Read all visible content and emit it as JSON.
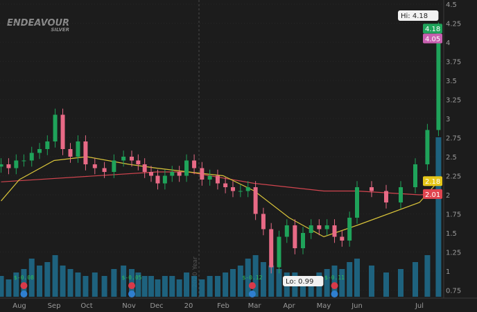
{
  "logo": {
    "name": "ENDEAVOUR",
    "sub": "SILVER"
  },
  "chart_data": {
    "type": "candlestick",
    "y_ticks": [
      4.5,
      4.25,
      4,
      3.75,
      3.5,
      3.25,
      3,
      2.75,
      2.5,
      2.25,
      2,
      1.75,
      1.5,
      1.25,
      1,
      0.75
    ],
    "ylim": [
      0.6,
      4.5
    ],
    "x_ticks": [
      "Aug",
      "Sep",
      "Oct",
      "Nov",
      "Dec",
      "20",
      "Feb",
      "Mar",
      "Apr",
      "May",
      "Jun",
      "Jul"
    ],
    "year_marker": "2020 Year",
    "dates": [
      "2019-07-15",
      "2019-07-22",
      "2019-07-29",
      "2019-08-05",
      "2019-08-12",
      "2019-08-19",
      "2019-08-26",
      "2019-09-02",
      "2019-09-09",
      "2019-09-16",
      "2019-09-23",
      "2019-09-30",
      "2019-10-07",
      "2019-10-14",
      "2019-10-21",
      "2019-10-28",
      "2019-11-04",
      "2019-11-11",
      "2019-11-18",
      "2019-11-25",
      "2019-12-02",
      "2019-12-09",
      "2019-12-16",
      "2019-12-23",
      "2019-12-30",
      "2020-01-06",
      "2020-01-13",
      "2020-01-20",
      "2020-01-27",
      "2020-02-03",
      "2020-02-10",
      "2020-02-17",
      "2020-02-24",
      "2020-03-02",
      "2020-03-09",
      "2020-03-16",
      "2020-03-23",
      "2020-03-30",
      "2020-04-06",
      "2020-04-13",
      "2020-04-20",
      "2020-04-27",
      "2020-05-04",
      "2020-05-11",
      "2020-05-18",
      "2020-05-25",
      "2020-06-01",
      "2020-06-08",
      "2020-06-15",
      "2020-06-22",
      "2020-06-29",
      "2020-07-06",
      "2020-07-13"
    ],
    "close": [
      2.4,
      2.35,
      2.45,
      2.45,
      2.55,
      2.6,
      2.7,
      3.05,
      2.6,
      2.5,
      2.7,
      2.4,
      2.35,
      2.3,
      2.45,
      2.5,
      2.45,
      2.4,
      2.3,
      2.25,
      2.15,
      2.25,
      2.3,
      2.25,
      2.45,
      2.35,
      2.2,
      2.25,
      2.15,
      2.1,
      2.05,
      2.05,
      2.1,
      1.75,
      1.55,
      1.05,
      1.45,
      1.6,
      1.3,
      1.5,
      1.6,
      1.55,
      1.6,
      1.45,
      1.4,
      1.7,
      2.1,
      2.05,
      1.9,
      2.1,
      2.4,
      2.85,
      4.18
    ],
    "volume_relative": [
      30,
      25,
      35,
      40,
      55,
      45,
      50,
      60,
      45,
      40,
      35,
      30,
      35,
      30,
      40,
      45,
      40,
      35,
      30,
      30,
      25,
      30,
      30,
      25,
      35,
      30,
      25,
      30,
      30,
      35,
      40,
      45,
      55,
      60,
      50,
      45,
      40,
      35,
      35,
      30,
      30,
      35,
      40,
      45,
      40,
      50,
      55,
      45,
      35,
      40,
      50,
      60,
      230
    ],
    "ma_yellow": {
      "dates": [
        "2019-07-15",
        "2019-08-01",
        "2019-09-01",
        "2019-10-01",
        "2019-11-01",
        "2019-12-01",
        "2020-01-01",
        "2020-02-01",
        "2020-03-01",
        "2020-04-01",
        "2020-05-01",
        "2020-06-01",
        "2020-07-01",
        "2020-07-13"
      ],
      "values": [
        1.92,
        2.2,
        2.45,
        2.5,
        2.4,
        2.35,
        2.3,
        2.25,
        2.05,
        1.7,
        1.45,
        1.6,
        1.9,
        2.18
      ]
    },
    "ma_red": {
      "dates": [
        "2019-07-15",
        "2019-12-01",
        "2020-01-01",
        "2020-02-01",
        "2020-03-01",
        "2020-04-01",
        "2020-05-01",
        "2020-06-01",
        "2020-07-01",
        "2020-07-13"
      ],
      "values": [
        2.17,
        2.3,
        2.3,
        2.22,
        2.15,
        2.1,
        2.05,
        2.05,
        2.0,
        2.01
      ]
    },
    "hi_label": "Hi: 4.18",
    "lo_label": "Lo: 0.99",
    "price_badges": [
      {
        "text": "4.18",
        "value": 4.18,
        "color": "#1fa35a"
      },
      {
        "text": "4.05",
        "value": 4.05,
        "color": "#c95fb0"
      },
      {
        "text": "2.18",
        "value": 2.18,
        "color": "#e6c619"
      },
      {
        "text": "2.01",
        "value": 2.01,
        "color": "#e0454f"
      }
    ],
    "earnings": [
      {
        "date": "2019-08-05",
        "text": "$-0.08"
      },
      {
        "date": "2019-11-04",
        "text": "$-0.05"
      },
      {
        "date": "2020-02-28",
        "text": "$-0.12"
      },
      {
        "date": "2020-05-11",
        "text": "$-0.11"
      }
    ],
    "colors": {
      "up": "#1fa35a",
      "down": "#e86a86",
      "volume": "#1f6f8f",
      "ma_yellow": "#d9c43a",
      "ma_red": "#d2454f"
    }
  }
}
